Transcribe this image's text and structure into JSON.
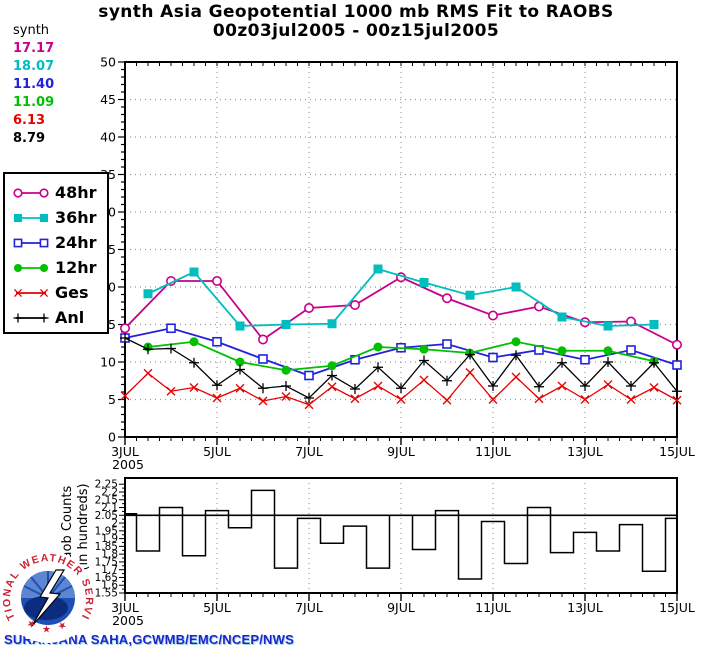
{
  "header": {
    "title_line1": "synth Asia Geopotential 1000 mb RMS Fit to RAOBS",
    "title_line2": "00z03jul2005 - 00z15jul2005"
  },
  "stats": {
    "label": "synth",
    "items": [
      {
        "value": "17.17",
        "series": "48hr",
        "color": "#C8008C"
      },
      {
        "value": "18.07",
        "series": "36hr",
        "color": "#00BEBE"
      },
      {
        "value": "11.40",
        "series": "24hr",
        "color": "#2222DC"
      },
      {
        "value": "11.09",
        "series": "12hr",
        "color": "#00C000"
      },
      {
        "value": "6.13",
        "series": "Ges",
        "color": "#E60000"
      },
      {
        "value": "8.79",
        "series": "Anl",
        "color": "#000000"
      }
    ]
  },
  "footer": {
    "credit": "SURANJANA SAHA,GCWMB/EMC/NCEP/NWS",
    "logo_text": "NATIONAL WEATHER SERVICE",
    "logo_stars": "★ ★ ★"
  },
  "chart_data": [
    {
      "type": "line",
      "title": "synth Asia Geopotential 1000 mb RMS Fit to RAOBS 00z03jul2005 - 00z15jul2005",
      "x_axis": {
        "unit": "half-days from 00z 3 Jul 2005",
        "points_per_day": 2,
        "total_halfdays": 24,
        "ticks": [
          {
            "day": 0,
            "label": "3JUL",
            "sublabel": "2005"
          },
          {
            "day": 2,
            "label": "5JUL"
          },
          {
            "day": 4,
            "label": "7JUL"
          },
          {
            "day": 6,
            "label": "9JUL"
          },
          {
            "day": 8,
            "label": "11JUL"
          },
          {
            "day": 10,
            "label": "13JUL"
          },
          {
            "day": 12,
            "label": "15JUL"
          }
        ]
      },
      "y_axis": {
        "min": 0,
        "max": 50,
        "label_step": 5,
        "minor_step": 1
      },
      "grid": {
        "color": "#999999",
        "h_step": 5,
        "v_days": [
          2,
          4,
          6,
          8,
          10
        ]
      },
      "series": [
        {
          "name": "48hr",
          "color": "#C8008C",
          "marker": "open-circle",
          "x_halfdays": [
            0,
            2,
            4,
            6,
            8,
            10,
            12,
            14,
            16,
            18,
            20,
            22,
            24
          ],
          "values": [
            14.5,
            20.8,
            20.8,
            13.0,
            17.2,
            17.6,
            21.3,
            18.5,
            16.2,
            17.4,
            15.3,
            15.4,
            12.3
          ]
        },
        {
          "name": "36hr",
          "color": "#00BEBE",
          "marker": "filled-square",
          "x_halfdays": [
            1,
            3,
            5,
            7,
            9,
            11,
            13,
            15,
            17,
            19,
            21,
            23
          ],
          "values": [
            19.1,
            22.0,
            14.8,
            15.0,
            15.1,
            22.4,
            20.6,
            18.9,
            20.0,
            16.0,
            14.8,
            15.0
          ]
        },
        {
          "name": "24hr",
          "color": "#2222DC",
          "marker": "open-square",
          "x_halfdays": [
            0,
            2,
            4,
            6,
            8,
            10,
            12,
            14,
            16,
            18,
            20,
            22,
            24
          ],
          "values": [
            13.2,
            14.5,
            12.7,
            10.4,
            8.2,
            10.3,
            11.9,
            12.4,
            10.6,
            11.6,
            10.3,
            11.6,
            9.6
          ]
        },
        {
          "name": "12hr",
          "color": "#00C000",
          "marker": "filled-circle",
          "x_halfdays": [
            1,
            3,
            5,
            7,
            9,
            11,
            13,
            15,
            17,
            19,
            21,
            23
          ],
          "values": [
            12.0,
            12.7,
            10.0,
            8.9,
            9.5,
            12.0,
            11.7,
            11.2,
            12.7,
            11.5,
            11.5,
            10.1
          ]
        },
        {
          "name": "Ges",
          "color": "#E60000",
          "marker": "x",
          "x_halfdays": [
            0,
            1,
            2,
            3,
            4,
            5,
            6,
            7,
            8,
            9,
            10,
            11,
            12,
            13,
            14,
            15,
            16,
            17,
            18,
            19,
            20,
            21,
            22,
            23,
            24
          ],
          "values": [
            5.5,
            8.5,
            6.1,
            6.6,
            5.2,
            6.5,
            4.8,
            5.4,
            4.3,
            6.7,
            5.1,
            6.8,
            5.0,
            7.6,
            4.9,
            8.6,
            5.0,
            8.0,
            5.1,
            6.8,
            5.0,
            7.0,
            5.0,
            6.6,
            4.9
          ]
        },
        {
          "name": "Anl",
          "color": "#000000",
          "marker": "plus",
          "x_halfdays": [
            0,
            1,
            2,
            3,
            4,
            5,
            6,
            7,
            8,
            9,
            10,
            11,
            12,
            13,
            14,
            15,
            16,
            17,
            18,
            19,
            20,
            21,
            22,
            23,
            24
          ],
          "values": [
            13.2,
            11.7,
            11.8,
            9.9,
            6.9,
            9.0,
            6.5,
            6.8,
            5.2,
            8.2,
            6.4,
            9.3,
            6.5,
            10.2,
            7.5,
            11.0,
            6.8,
            10.9,
            6.7,
            9.9,
            6.8,
            10.0,
            6.8,
            9.9,
            6.1
          ]
        }
      ]
    },
    {
      "type": "step",
      "ylabel_line1": "Raob Counts",
      "ylabel_line2": "(in hundreds)",
      "y_axis": {
        "min": 1.55,
        "max": 2.29,
        "label_step": 0.05,
        "minor_step": 0.025,
        "labels": [
          "2.25",
          "2.2",
          "2.15",
          "2.1",
          "2.05",
          "2",
          "1.95",
          "1.9",
          "1.85",
          "1.8",
          "1.75",
          "1.7",
          "1.65",
          "1.6",
          "1.55"
        ]
      },
      "reference_line": 2.05,
      "x_halfdays": [
        0,
        1,
        2,
        3,
        4,
        5,
        6,
        7,
        8,
        9,
        10,
        11,
        12,
        13,
        14,
        15,
        16,
        17,
        18,
        19,
        20,
        21,
        22,
        23,
        24
      ],
      "values": [
        2.06,
        1.82,
        2.1,
        1.79,
        2.08,
        1.97,
        2.21,
        1.71,
        2.03,
        1.87,
        1.98,
        1.71,
        2.05,
        1.83,
        2.08,
        1.64,
        2.01,
        1.74,
        2.1,
        1.81,
        1.94,
        1.82,
        1.99,
        1.69,
        2.03
      ]
    }
  ]
}
